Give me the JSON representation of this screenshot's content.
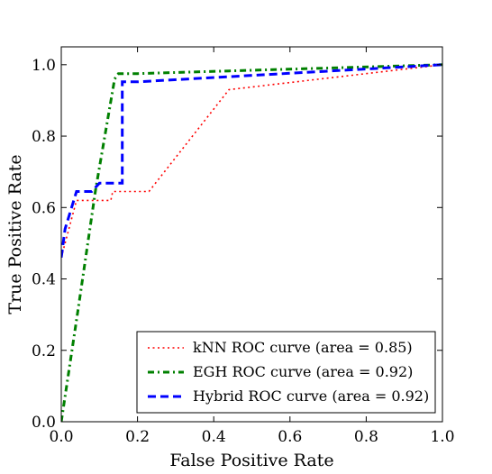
{
  "chart_data": {
    "type": "line",
    "title": "",
    "xlabel": "False Positive Rate",
    "ylabel": "True Positive Rate",
    "xlim": [
      0.0,
      1.0
    ],
    "ylim": [
      0.0,
      1.05
    ],
    "xticks": [
      0.0,
      0.2,
      0.4,
      0.6,
      0.8,
      1.0
    ],
    "yticks": [
      0.0,
      0.2,
      0.4,
      0.6,
      0.8,
      1.0
    ],
    "xtick_labels": [
      "0.0",
      "0.2",
      "0.4",
      "0.6",
      "0.8",
      "1.0"
    ],
    "ytick_labels": [
      "0.0",
      "0.2",
      "0.4",
      "0.6",
      "0.8",
      "1.0"
    ],
    "grid": false,
    "legend_position": "lower-right",
    "series": [
      {
        "name": "kNN ROC curve (area = 0.85)",
        "color": "#ff0000",
        "style": "dotted",
        "x": [
          0.0,
          0.04,
          0.13,
          0.135,
          0.23,
          0.44,
          1.0
        ],
        "y": [
          0.46,
          0.62,
          0.62,
          0.645,
          0.645,
          0.93,
          1.0
        ]
      },
      {
        "name": "EGH ROC curve (area = 0.92)",
        "color": "#008000",
        "style": "dashdot",
        "x": [
          0.0,
          0.045,
          0.09,
          0.14,
          0.15,
          0.2,
          1.0
        ],
        "y": [
          0.0,
          0.32,
          0.65,
          0.96,
          0.975,
          0.975,
          1.0
        ]
      },
      {
        "name": "Hybrid ROC curve (area = 0.92)",
        "color": "#0000ff",
        "style": "dashed",
        "x": [
          0.0,
          0.01,
          0.04,
          0.08,
          0.1,
          0.16,
          0.16,
          0.2,
          1.0
        ],
        "y": [
          0.46,
          0.54,
          0.645,
          0.645,
          0.668,
          0.668,
          0.952,
          0.952,
          1.0
        ]
      }
    ]
  }
}
